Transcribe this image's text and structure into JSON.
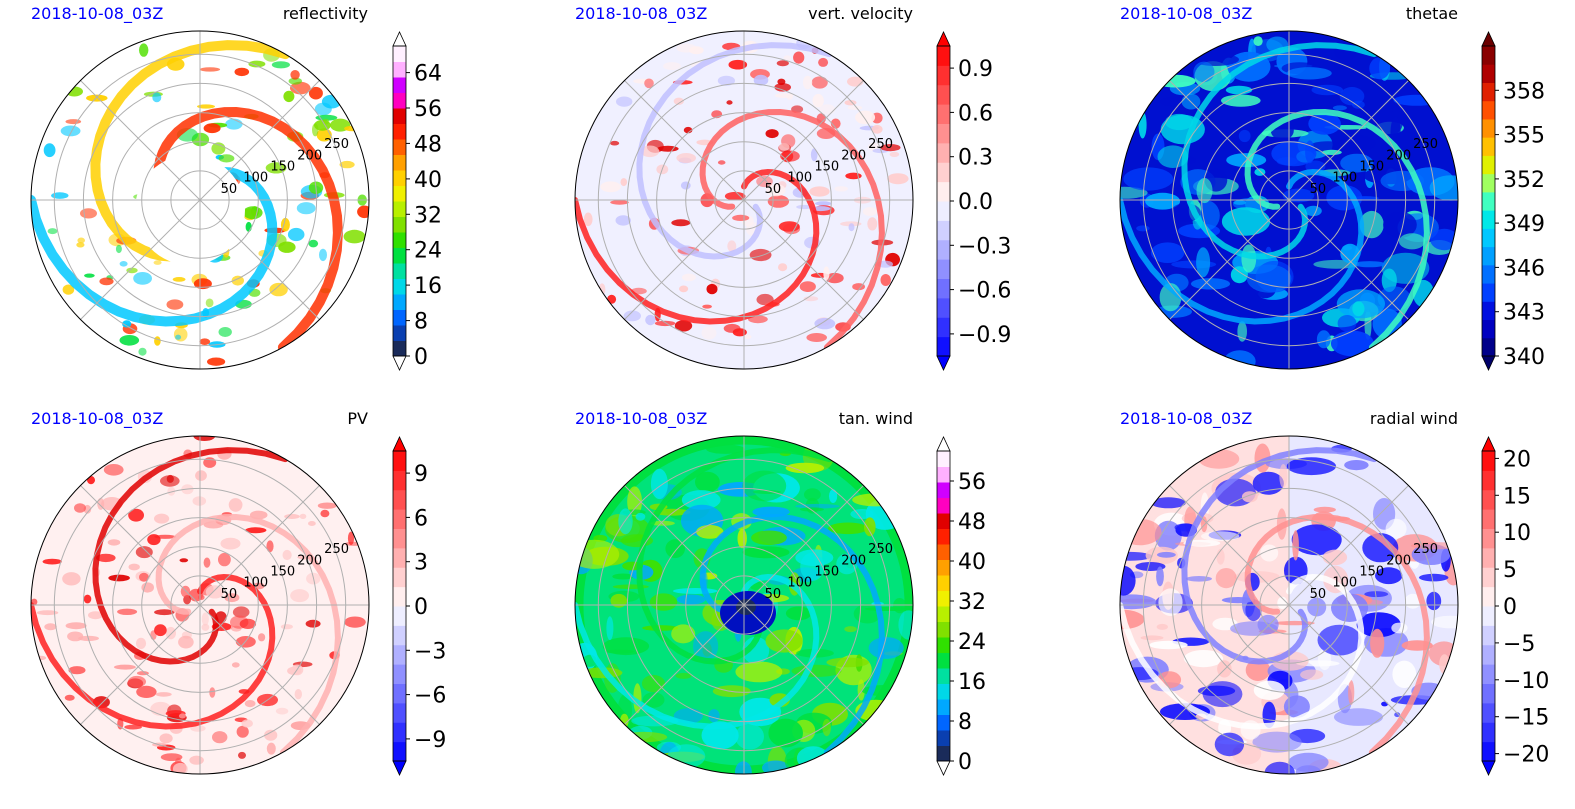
{
  "chart_data": [
    {
      "type": "polar-contour",
      "title": "reflectivity",
      "time_label": "2018-10-08_03Z",
      "radial_ticks": [
        "50",
        "100",
        "150",
        "200",
        "250"
      ],
      "colorbar": {
        "ticks": [
          "0",
          "8",
          "16",
          "24",
          "32",
          "40",
          "48",
          "56",
          "64"
        ],
        "range": [
          0,
          70
        ],
        "extend": "both",
        "colors": [
          "#1a2b5a",
          "#0a3fb0",
          "#0066ff",
          "#00a8ff",
          "#00d8e8",
          "#00e0a0",
          "#00e040",
          "#30e000",
          "#80e000",
          "#b8f000",
          "#f0f000",
          "#ffd000",
          "#ffa000",
          "#ff6000",
          "#ff2000",
          "#e00000",
          "#ff00c0",
          "#d000ff",
          "#ffb0ff",
          "#fff0ff"
        ],
        "end_colors": [
          "#ffffff",
          "#ffffff"
        ]
      },
      "field_palette": [
        "#00e040",
        "#50e000",
        "#00c8ff",
        "#ffd000",
        "#ff3000",
        "#80e000"
      ]
    },
    {
      "type": "polar-contour",
      "title": "vert. velocity",
      "time_label": "2018-10-08_03Z",
      "radial_ticks": [
        "50",
        "100",
        "150",
        "200",
        "250"
      ],
      "colorbar": {
        "ticks": [
          "−0.9",
          "−0.6",
          "−0.3",
          "0.0",
          "0.3",
          "0.6",
          "0.9"
        ],
        "range": [
          -1.05,
          1.05
        ],
        "extend": "both",
        "colors": [
          "#1010ff",
          "#3030ff",
          "#5050ff",
          "#7070ff",
          "#9090ff",
          "#b0b0ff",
          "#d0d0ff",
          "#eeeeff",
          "#ffeeee",
          "#ffd0d0",
          "#ffb0b0",
          "#ff9090",
          "#ff7070",
          "#ff5050",
          "#ff3030",
          "#ff1010"
        ],
        "end_colors": [
          "#0000ff",
          "#ff0000"
        ]
      },
      "field_palette": [
        "#fff0f0",
        "#ffcccc",
        "#ff2020",
        "#c0c0ff",
        "#ff6060",
        "#e00000"
      ]
    },
    {
      "type": "polar-contour",
      "title": "thetae",
      "time_label": "2018-10-08_03Z",
      "radial_ticks": [
        "50",
        "100",
        "150",
        "200",
        "250"
      ],
      "colorbar": {
        "ticks": [
          "340",
          "343",
          "346",
          "349",
          "352",
          "355",
          "358"
        ],
        "range": [
          340,
          361
        ],
        "extend": "both",
        "colors": [
          "#00008a",
          "#0000c0",
          "#0010e0",
          "#0040ff",
          "#0070ff",
          "#00a0ff",
          "#00c8ff",
          "#00e8e8",
          "#40ffc0",
          "#a0ff60",
          "#e0f000",
          "#ffc000",
          "#ff9000",
          "#ff5000",
          "#e02000",
          "#b00000",
          "#8a0000"
        ],
        "end_colors": [
          "#00006a",
          "#6a0000"
        ]
      },
      "field_palette": [
        "#0040ff",
        "#0070ff",
        "#00a8ff",
        "#00d8e8",
        "#40ffc0",
        "#0010d0"
      ]
    },
    {
      "type": "polar-contour",
      "title": "PV",
      "time_label": "2018-10-08_03Z",
      "radial_ticks": [
        "50",
        "100",
        "150",
        "200",
        "250"
      ],
      "colorbar": {
        "ticks": [
          "−9",
          "−6",
          "−3",
          "0",
          "3",
          "6",
          "9"
        ],
        "range": [
          -10.5,
          10.5
        ],
        "extend": "both",
        "colors": [
          "#1010ff",
          "#3030ff",
          "#5050ff",
          "#7070ff",
          "#9090ff",
          "#b0b0ff",
          "#d0d0ff",
          "#eeeeff",
          "#ffeeee",
          "#ffd0d0",
          "#ffb0b0",
          "#ff9090",
          "#ff7070",
          "#ff5050",
          "#ff3030",
          "#ff1010"
        ],
        "end_colors": [
          "#0000ff",
          "#ff0000"
        ]
      },
      "field_palette": [
        "#ffcccc",
        "#ff9090",
        "#ff2020",
        "#e00000",
        "#ffb0b0",
        "#ff5050"
      ]
    },
    {
      "type": "polar-contour",
      "title": "tan. wind",
      "time_label": "2018-10-08_03Z",
      "radial_ticks": [
        "50",
        "100",
        "150",
        "200",
        "250"
      ],
      "colorbar": {
        "ticks": [
          "0",
          "8",
          "16",
          "24",
          "32",
          "40",
          "48",
          "56"
        ],
        "range": [
          0,
          62
        ],
        "extend": "both",
        "colors": [
          "#1a2b5a",
          "#0a3fb0",
          "#0066ff",
          "#00a8ff",
          "#00d8e8",
          "#00e0a0",
          "#00e040",
          "#30e000",
          "#80e000",
          "#b8f000",
          "#f0f000",
          "#ffd000",
          "#ffa000",
          "#ff6000",
          "#ff2000",
          "#e00000",
          "#ff00c0",
          "#d000ff",
          "#ffb0ff",
          "#fff0ff"
        ],
        "end_colors": [
          "#ffffff",
          "#ffffff"
        ]
      },
      "field_palette": [
        "#40e000",
        "#80e000",
        "#00e8e8",
        "#00e040",
        "#00a8ff",
        "#b8f000"
      ]
    },
    {
      "type": "polar-contour",
      "title": "radial wind",
      "time_label": "2018-10-08_03Z",
      "radial_ticks": [
        "50",
        "100",
        "150",
        "200",
        "250"
      ],
      "colorbar": {
        "ticks": [
          "−20",
          "−15",
          "−10",
          "−5",
          "0",
          "5",
          "10",
          "15",
          "20"
        ],
        "range": [
          -21,
          21
        ],
        "extend": "both",
        "colors": [
          "#1010ff",
          "#3030ff",
          "#5050ff",
          "#7070ff",
          "#9090ff",
          "#b0b0ff",
          "#d0d0ff",
          "#eeeeff",
          "#ffeeee",
          "#ffd0d0",
          "#ffb0b0",
          "#ff9090",
          "#ff7070",
          "#ff5050",
          "#ff3030",
          "#ff1010"
        ],
        "end_colors": [
          "#0000ff",
          "#ff0000"
        ]
      },
      "field_palette": [
        "#ffc8c8",
        "#2020ff",
        "#ffffff",
        "#8080ff",
        "#ff9090",
        "#0000ff"
      ]
    }
  ]
}
